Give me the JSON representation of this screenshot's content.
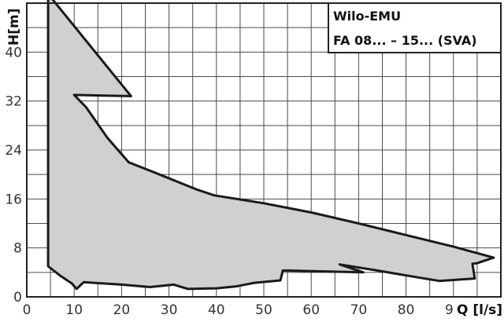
{
  "chart_data": {
    "type": "area",
    "title": "Wilo-EMU",
    "subtitle": "FA 08... – 15... (SVA)",
    "xlabel": "Q [l/s]",
    "ylabel": "H[m]",
    "xlim": [
      0,
      100
    ],
    "ylim": [
      0,
      48
    ],
    "x_ticks": [
      "0",
      "10",
      "20",
      "30",
      "40",
      "50",
      "60",
      "70",
      "80",
      "90"
    ],
    "y_ticks": [
      "0",
      "8",
      "16",
      "24",
      "32",
      "40"
    ],
    "grid": true,
    "colors": {
      "fill": "#d0d0d0",
      "outline": "#1a1a1a",
      "grid": "#4a4a4a"
    },
    "series": [
      {
        "values": [
          [
            4.5,
            49.5
          ],
          [
            22,
            32.8
          ],
          [
            10,
            33
          ],
          [
            12.5,
            31
          ],
          [
            17,
            26
          ],
          [
            21.5,
            22
          ],
          [
            28,
            20
          ],
          [
            36,
            17.5
          ],
          [
            39.5,
            16.6
          ],
          [
            50,
            15.3
          ],
          [
            60,
            13.8
          ],
          [
            70,
            12
          ],
          [
            80,
            10.1
          ],
          [
            90,
            8.2
          ],
          [
            98.5,
            6.4
          ],
          [
            95,
            5.5
          ],
          [
            94,
            5.4
          ],
          [
            94.5,
            3
          ],
          [
            87,
            2.6
          ],
          [
            80,
            3.5
          ],
          [
            74,
            4.3
          ],
          [
            66,
            5.3
          ],
          [
            71,
            4
          ],
          [
            55,
            4.3
          ],
          [
            54,
            4.3
          ],
          [
            53.5,
            2.7
          ],
          [
            48,
            2.3
          ],
          [
            44,
            1.7
          ],
          [
            40,
            1.4
          ],
          [
            34,
            1.3
          ],
          [
            31,
            2
          ],
          [
            26,
            1.6
          ],
          [
            20,
            2
          ],
          [
            12,
            2.4
          ],
          [
            10.5,
            1.3
          ],
          [
            9.5,
            2.2
          ],
          [
            7,
            3.5
          ],
          [
            4.5,
            5
          ],
          [
            4.5,
            49.5
          ]
        ]
      }
    ]
  }
}
